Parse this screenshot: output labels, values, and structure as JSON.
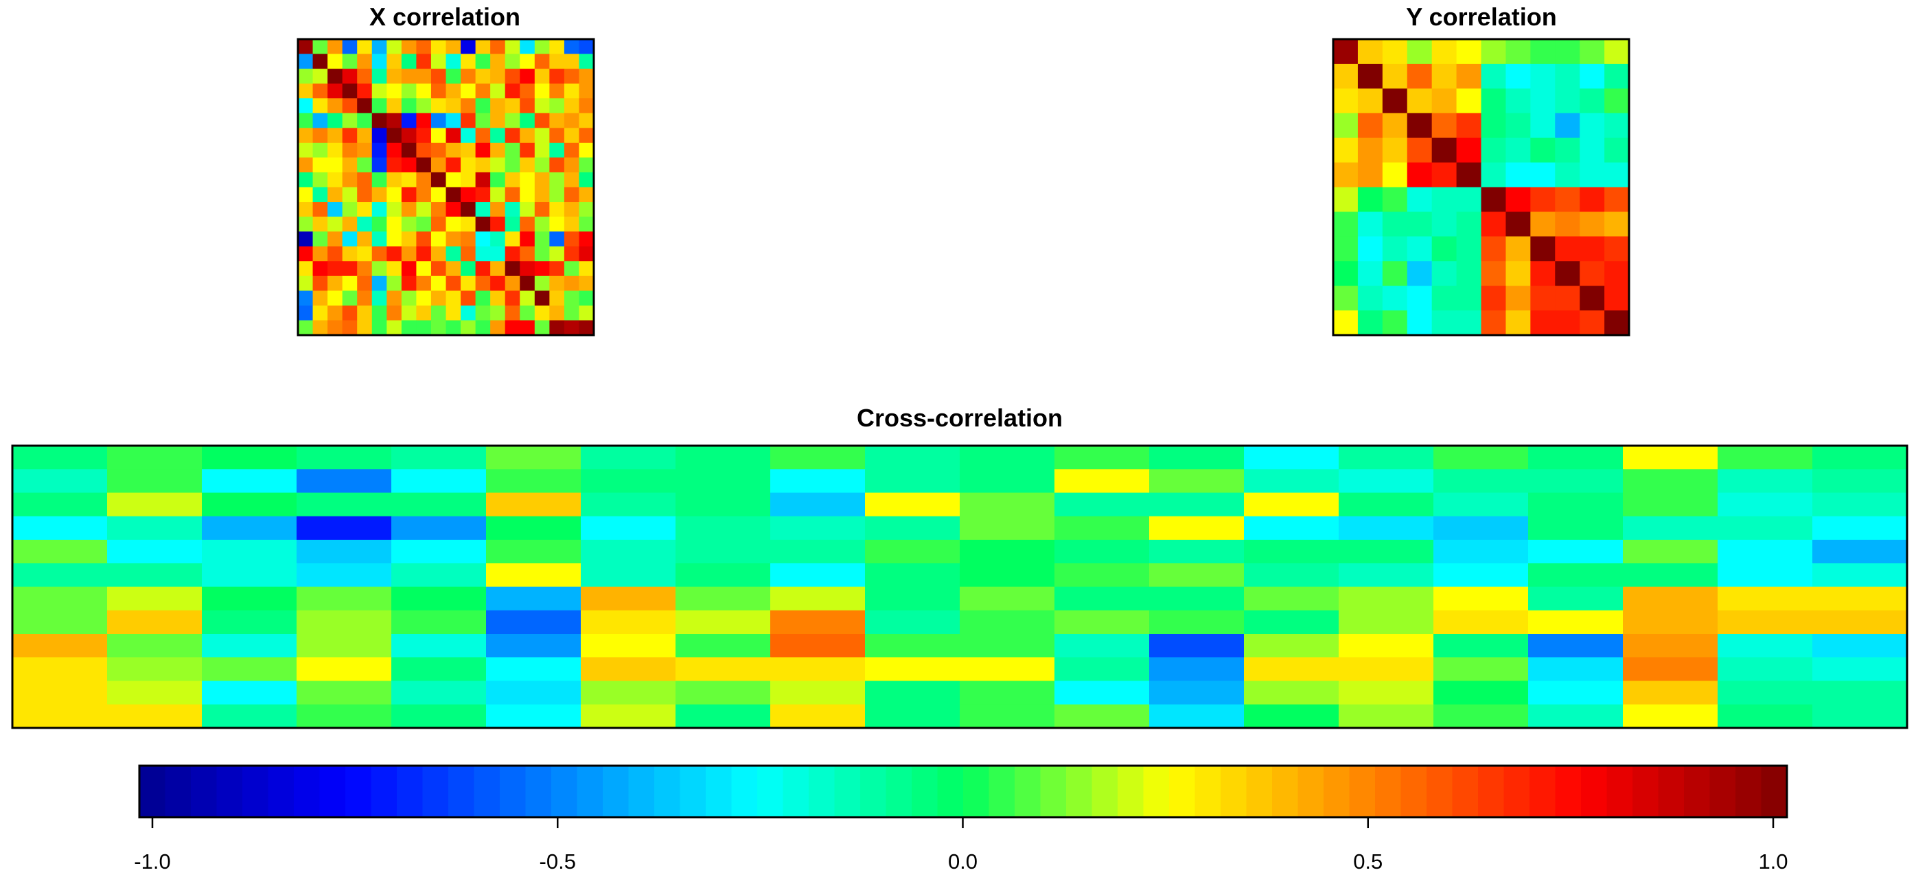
{
  "chart_data": [
    {
      "id": "x",
      "type": "heatmap",
      "title": "X correlation",
      "rows": 20,
      "cols": 20,
      "values": [
        [
          0.95,
          0.1,
          0.45,
          -0.55,
          0.3,
          -0.4,
          0.2,
          0.45,
          0.55,
          0.3,
          0.4,
          -0.8,
          0.35,
          0.55,
          0.2,
          -0.3,
          0.15,
          0.3,
          -0.55,
          -0.6
        ],
        [
          -0.45,
          1.0,
          0.25,
          0.1,
          0.45,
          -0.3,
          0.35,
          -0.05,
          0.65,
          0.2,
          -0.2,
          0.3,
          0.05,
          0.4,
          0.15,
          0.25,
          0.55,
          0.35,
          0.35,
          -0.1
        ],
        [
          0.15,
          0.2,
          1.0,
          0.8,
          0.55,
          -0.1,
          0.4,
          0.45,
          0.45,
          0.6,
          0.05,
          0.5,
          0.35,
          0.4,
          0.6,
          0.75,
          0.35,
          0.65,
          0.55,
          0.45
        ],
        [
          0.35,
          0.55,
          0.8,
          1.0,
          0.7,
          0.2,
          0.25,
          0.15,
          0.25,
          0.55,
          0.4,
          0.25,
          0.5,
          0.2,
          0.7,
          0.55,
          0.25,
          0.5,
          0.3,
          0.45
        ],
        [
          -0.25,
          0.3,
          0.45,
          0.6,
          1.0,
          0.05,
          0.35,
          0.05,
          0.15,
          0.3,
          0.35,
          0.5,
          0.05,
          0.4,
          0.35,
          0.6,
          0.2,
          0.15,
          0.35,
          0.5
        ],
        [
          0.05,
          -0.4,
          -0.05,
          0.15,
          0.05,
          1.0,
          0.9,
          -0.7,
          0.75,
          -0.5,
          -0.3,
          0.65,
          0.1,
          0.4,
          0.15,
          -0.05,
          0.6,
          0.4,
          0.45,
          0.35
        ],
        [
          0.4,
          0.5,
          0.4,
          0.65,
          0.4,
          -0.8,
          1.0,
          0.85,
          0.7,
          0.25,
          0.8,
          -0.2,
          0.55,
          -0.1,
          0.65,
          0.4,
          0.2,
          0.55,
          0.35,
          0.55
        ],
        [
          0.2,
          0.15,
          0.3,
          0.5,
          0.45,
          -0.7,
          0.75,
          1.0,
          0.6,
          0.55,
          0.4,
          0.35,
          0.75,
          0.4,
          0.1,
          0.65,
          0.2,
          -0.1,
          0.55,
          0.25
        ],
        [
          0.45,
          0.25,
          0.25,
          0.4,
          0.1,
          -0.65,
          0.7,
          0.75,
          1.0,
          0.45,
          0.7,
          0.3,
          0.35,
          0.2,
          0.1,
          0.35,
          0.15,
          0.6,
          0.45,
          0.1
        ],
        [
          -0.05,
          0.15,
          0.3,
          0.45,
          0.55,
          0.05,
          0.35,
          0.3,
          0.5,
          1.0,
          0.25,
          0.3,
          0.85,
          0.05,
          0.35,
          0.25,
          0.4,
          0.15,
          0.4,
          -0.05
        ],
        [
          0.25,
          -0.1,
          0.4,
          0.2,
          0.55,
          0.4,
          0.25,
          0.7,
          0.5,
          0.25,
          1.0,
          0.75,
          0.7,
          0.2,
          0.55,
          0.25,
          0.4,
          0.15,
          0.55,
          0.4
        ],
        [
          0.35,
          0.55,
          -0.35,
          0.15,
          0.3,
          -0.2,
          0.2,
          0.45,
          0.2,
          0.5,
          0.75,
          1.0,
          -0.15,
          0.45,
          -0.15,
          0.2,
          0.55,
          0.3,
          0.4,
          0.15
        ],
        [
          0.15,
          0.35,
          0.2,
          0.4,
          -0.15,
          0.05,
          0.25,
          0.15,
          0.1,
          0.55,
          0.25,
          0.3,
          1.0,
          0.7,
          -0.1,
          0.55,
          0.15,
          0.25,
          0.35,
          0.1
        ],
        [
          -0.9,
          0.1,
          0.45,
          -0.3,
          0.4,
          -0.15,
          0.25,
          0.35,
          0.6,
          0.25,
          0.45,
          0.5,
          -0.25,
          -0.15,
          0.3,
          0.75,
          0.1,
          -0.55,
          0.6,
          0.75
        ],
        [
          0.75,
          0.45,
          0.6,
          0.35,
          0.3,
          0.55,
          0.7,
          0.45,
          0.7,
          0.4,
          -0.1,
          0.55,
          -0.2,
          -0.2,
          0.7,
          0.55,
          0.1,
          0.2,
          0.65,
          0.8
        ],
        [
          0.3,
          0.75,
          0.7,
          0.7,
          0.5,
          0.15,
          0.3,
          0.75,
          0.25,
          0.6,
          0.4,
          -0.05,
          0.7,
          0.4,
          1.0,
          0.8,
          0.75,
          0.65,
          0.1,
          0.3
        ],
        [
          0.2,
          0.6,
          0.4,
          0.25,
          0.55,
          -0.4,
          0.15,
          0.7,
          0.5,
          0.25,
          0.6,
          0.3,
          0.55,
          0.7,
          0.45,
          1.0,
          0.15,
          0.4,
          0.45,
          0.4
        ],
        [
          -0.5,
          0.4,
          0.25,
          0.1,
          0.5,
          -0.15,
          0.45,
          0.15,
          0.25,
          0.4,
          0.3,
          0.6,
          0.05,
          0.35,
          0.65,
          0.2,
          1.0,
          0.35,
          0.1,
          0.05
        ],
        [
          -0.55,
          0.3,
          0.45,
          0.6,
          0.35,
          0.05,
          0.5,
          0.2,
          0.35,
          0.1,
          0.3,
          -0.2,
          0.1,
          0.15,
          0.55,
          0.1,
          0.3,
          0.4,
          0.1,
          0.2
        ],
        [
          0.1,
          0.4,
          0.5,
          0.55,
          0.35,
          0.05,
          0.2,
          0.05,
          0.05,
          0.1,
          0.05,
          0.15,
          0.05,
          0.45,
          0.75,
          0.75,
          0.1,
          0.95,
          0.9,
          0.95
        ]
      ]
    },
    {
      "id": "y",
      "type": "heatmap",
      "title": "Y correlation",
      "rows": 12,
      "cols": 12,
      "values": [
        [
          0.95,
          0.35,
          0.3,
          0.15,
          0.3,
          0.25,
          0.15,
          0.1,
          0.05,
          0.05,
          0.1,
          0.2
        ],
        [
          0.35,
          1.0,
          0.35,
          0.55,
          0.35,
          0.45,
          -0.15,
          -0.25,
          -0.2,
          -0.15,
          -0.25,
          -0.1
        ],
        [
          0.3,
          0.35,
          1.0,
          0.35,
          0.4,
          0.25,
          -0.05,
          -0.15,
          -0.2,
          -0.15,
          -0.1,
          0.05
        ],
        [
          0.15,
          0.55,
          0.4,
          1.0,
          0.55,
          0.65,
          -0.05,
          -0.1,
          -0.2,
          -0.4,
          -0.2,
          -0.15
        ],
        [
          0.3,
          0.45,
          0.35,
          0.6,
          1.0,
          0.75,
          -0.1,
          -0.15,
          -0.05,
          -0.1,
          -0.2,
          -0.1
        ],
        [
          0.4,
          0.45,
          0.25,
          0.75,
          0.7,
          1.0,
          -0.15,
          -0.25,
          -0.25,
          -0.15,
          -0.2,
          -0.2
        ],
        [
          0.2,
          0.0,
          0.05,
          -0.2,
          -0.15,
          -0.15,
          1.0,
          0.75,
          0.65,
          0.6,
          0.7,
          0.6
        ],
        [
          0.05,
          -0.2,
          -0.1,
          -0.1,
          -0.15,
          -0.1,
          0.7,
          1.0,
          0.45,
          0.5,
          0.45,
          0.4
        ],
        [
          0.05,
          -0.25,
          -0.15,
          -0.2,
          -0.05,
          -0.1,
          0.6,
          0.4,
          1.0,
          0.7,
          0.7,
          0.65
        ],
        [
          0.0,
          -0.2,
          0.05,
          -0.35,
          -0.15,
          -0.1,
          0.55,
          0.35,
          0.7,
          1.0,
          0.65,
          0.7
        ],
        [
          0.1,
          -0.15,
          -0.2,
          -0.25,
          -0.1,
          -0.1,
          0.65,
          0.45,
          0.65,
          0.65,
          1.0,
          0.7
        ],
        [
          0.25,
          -0.05,
          0.05,
          -0.25,
          -0.15,
          -0.15,
          0.6,
          0.35,
          0.7,
          0.7,
          0.65,
          1.0
        ]
      ]
    },
    {
      "id": "cross",
      "type": "heatmap",
      "title": "Cross-correlation",
      "rows": 12,
      "cols": 20,
      "values": [
        [
          -0.05,
          0.05,
          0.0,
          -0.05,
          -0.1,
          0.1,
          -0.1,
          -0.05,
          0.05,
          -0.1,
          -0.05,
          0.05,
          -0.05,
          -0.25,
          -0.1,
          0.05,
          -0.05,
          0.25,
          0.05,
          -0.05
        ],
        [
          -0.15,
          0.05,
          -0.25,
          -0.5,
          -0.25,
          0.05,
          -0.05,
          -0.05,
          -0.25,
          -0.1,
          -0.05,
          0.25,
          0.1,
          -0.15,
          -0.2,
          -0.1,
          -0.1,
          0.05,
          -0.15,
          -0.1
        ],
        [
          -0.05,
          0.2,
          0.0,
          -0.05,
          -0.05,
          0.35,
          -0.1,
          -0.05,
          -0.35,
          0.25,
          0.1,
          -0.1,
          -0.1,
          0.25,
          -0.05,
          -0.15,
          -0.05,
          0.05,
          -0.2,
          -0.15
        ],
        [
          -0.25,
          -0.15,
          -0.4,
          -0.7,
          -0.45,
          0.0,
          -0.25,
          -0.1,
          -0.15,
          -0.1,
          0.1,
          0.05,
          0.25,
          -0.25,
          -0.3,
          -0.35,
          -0.05,
          -0.15,
          -0.15,
          -0.25
        ],
        [
          0.1,
          -0.25,
          -0.2,
          -0.35,
          -0.25,
          0.05,
          -0.15,
          -0.1,
          -0.1,
          0.05,
          0.0,
          -0.05,
          -0.1,
          -0.05,
          -0.05,
          -0.3,
          -0.25,
          0.1,
          -0.25,
          -0.4
        ],
        [
          -0.1,
          -0.1,
          -0.2,
          -0.3,
          -0.15,
          0.25,
          -0.15,
          -0.05,
          -0.25,
          -0.05,
          0.0,
          0.05,
          0.1,
          -0.1,
          -0.15,
          -0.25,
          -0.05,
          -0.05,
          -0.25,
          -0.2
        ],
        [
          0.1,
          0.2,
          0.0,
          0.1,
          0.0,
          -0.4,
          0.4,
          0.1,
          0.2,
          -0.05,
          0.1,
          -0.05,
          -0.05,
          0.1,
          0.15,
          0.25,
          -0.1,
          0.4,
          0.3,
          0.3
        ],
        [
          0.1,
          0.35,
          -0.05,
          0.15,
          0.05,
          -0.55,
          0.3,
          0.2,
          0.5,
          -0.1,
          0.05,
          0.1,
          0.05,
          -0.05,
          0.15,
          0.3,
          0.25,
          0.4,
          0.35,
          0.35
        ],
        [
          0.4,
          0.1,
          -0.2,
          0.15,
          -0.2,
          -0.45,
          0.25,
          0.05,
          0.55,
          0.05,
          0.05,
          -0.15,
          -0.6,
          0.15,
          0.25,
          -0.05,
          -0.5,
          0.45,
          -0.2,
          -0.3
        ],
        [
          0.3,
          0.15,
          0.1,
          0.25,
          -0.05,
          -0.25,
          0.35,
          0.3,
          0.3,
          0.25,
          0.25,
          -0.1,
          -0.45,
          0.3,
          0.3,
          0.1,
          -0.3,
          0.5,
          -0.15,
          -0.2
        ],
        [
          0.3,
          0.2,
          -0.25,
          0.1,
          -0.15,
          -0.3,
          0.15,
          0.1,
          0.2,
          -0.05,
          0.05,
          -0.25,
          -0.4,
          0.15,
          0.2,
          0.0,
          -0.25,
          0.35,
          -0.1,
          -0.1
        ],
        [
          0.3,
          0.3,
          -0.1,
          0.05,
          -0.05,
          -0.25,
          0.2,
          -0.05,
          0.3,
          -0.05,
          0.05,
          0.1,
          -0.3,
          0.0,
          0.15,
          0.05,
          -0.15,
          0.25,
          -0.05,
          -0.1
        ]
      ]
    }
  ],
  "colorbar": {
    "min": -1.0,
    "max": 1.0,
    "ticks": [
      -1.0,
      -0.5,
      0.0,
      0.5,
      1.0
    ],
    "tick_labels": [
      "-1.0",
      "-0.5",
      "0.0",
      "0.5",
      "1.0"
    ],
    "colors": [
      "#00008F",
      "#0000FF",
      "#0080FF",
      "#00FFFF",
      "#00FF60",
      "#FFFF00",
      "#FF8000",
      "#FF0000",
      "#800000"
    ]
  }
}
